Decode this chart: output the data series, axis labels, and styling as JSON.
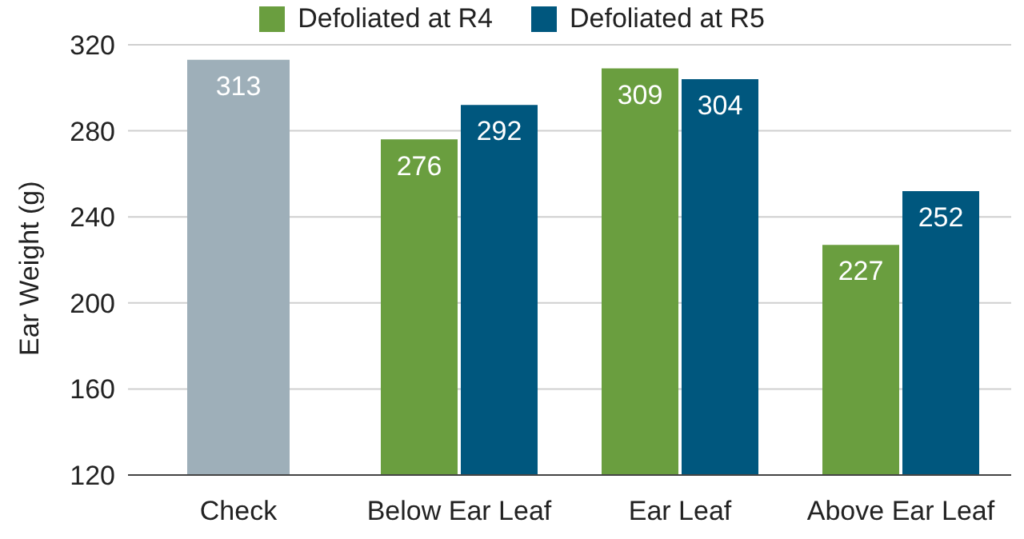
{
  "chart_data": {
    "type": "bar",
    "ylabel": "Ear Weight (g)",
    "categories": [
      "Check",
      "Below Ear Leaf",
      "Ear Leaf",
      "Above Ear Leaf"
    ],
    "series": [
      {
        "color": "#9eafb9",
        "values": [
          313,
          null,
          null,
          null
        ]
      },
      {
        "name": "Defoliated at R4",
        "color": "#6a9e3f",
        "values": [
          null,
          276,
          309,
          227
        ]
      },
      {
        "name": "Defoliated at R5",
        "color": "#00577e",
        "values": [
          null,
          292,
          304,
          252
        ]
      }
    ],
    "ylim": [
      120,
      320
    ],
    "yticks": [
      120,
      160,
      200,
      240,
      280,
      320
    ],
    "grid": "y",
    "legend": "top",
    "data_labels": true
  }
}
